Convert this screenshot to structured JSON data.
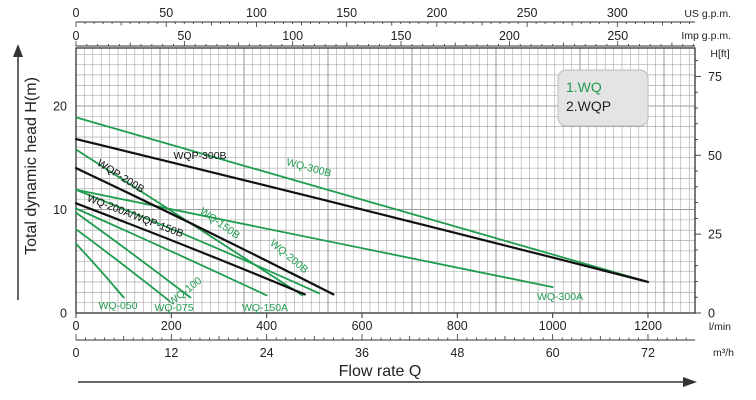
{
  "chart_data": {
    "type": "line",
    "xlabel": "Flow rate Q",
    "ylabel": "Total dynamic head H(m)",
    "x_units": {
      "lmin": "l/min",
      "m3h": "m³/h",
      "us_gpm": "US g.p.m.",
      "imp_gpm": "Imp g.p.m."
    },
    "y_units": {
      "m": "H(m)",
      "ft": "H[ft]"
    },
    "xlim_lmin": [
      0,
      1300
    ],
    "ylim_m": [
      0,
      25
    ],
    "x_ticks_lmin": [
      "0",
      "200",
      "400",
      "600",
      "800",
      "1000",
      "1200"
    ],
    "x_ticks_m3h": [
      "0",
      "12",
      "24",
      "36",
      "48",
      "60",
      "72"
    ],
    "x_ticks_us_gpm": [
      "0",
      "50",
      "100",
      "150",
      "200",
      "250",
      "300"
    ],
    "x_ticks_imp_gpm": [
      "0",
      "50",
      "100",
      "150",
      "200",
      "250"
    ],
    "y_ticks_m": [
      "0",
      "10",
      "20"
    ],
    "y_ticks_ft": [
      "0",
      "25",
      "50",
      "75"
    ],
    "grid": true,
    "legend": {
      "position": "top-right",
      "entries": [
        {
          "label": "1.WQ",
          "color": "#1f9c4f"
        },
        {
          "label": "2.WQP",
          "color": "#222222"
        }
      ]
    },
    "colors": {
      "WQ": "#1f9c4f",
      "WQP": "#111111",
      "grid": "#9e9e9e"
    },
    "series": [
      {
        "name": "WQ-050",
        "family": "WQ",
        "x": [
          0,
          100
        ],
        "y": [
          6.7,
          1.5
        ]
      },
      {
        "name": "WQ-075",
        "family": "WQ",
        "x": [
          0,
          195
        ],
        "y": [
          8.1,
          1.2
        ]
      },
      {
        "name": "WQ-100",
        "family": "WQ",
        "x": [
          0,
          240
        ],
        "y": [
          9.7,
          1.5
        ]
      },
      {
        "name": "WQ-150A",
        "family": "WQ",
        "x": [
          0,
          400
        ],
        "y": [
          10.1,
          1.7
        ]
      },
      {
        "name": "WQ-150B",
        "family": "WQ",
        "x": [
          0,
          475
        ],
        "y": [
          15.8,
          1.7
        ]
      },
      {
        "name": "WQ-200B",
        "family": "WQ",
        "x": [
          0,
          510
        ],
        "y": [
          11.9,
          1.9
        ]
      },
      {
        "name": "WQ-300A",
        "family": "WQ",
        "x": [
          0,
          1000
        ],
        "y": [
          11.9,
          2.5
        ]
      },
      {
        "name": "WQ-300B",
        "family": "WQ",
        "x": [
          0,
          1200
        ],
        "y": [
          18.9,
          3.0
        ]
      },
      {
        "name": "WQP-300B",
        "family": "WQP",
        "x": [
          0,
          1200
        ],
        "y": [
          16.8,
          3.0
        ]
      },
      {
        "name": "WQP-200B",
        "family": "WQP",
        "x": [
          0,
          540
        ],
        "y": [
          14.0,
          1.8
        ]
      },
      {
        "name": "WQ-200A/WQP-150B",
        "family": "WQP",
        "x": [
          0,
          480
        ],
        "y": [
          10.6,
          1.8
        ]
      }
    ]
  }
}
